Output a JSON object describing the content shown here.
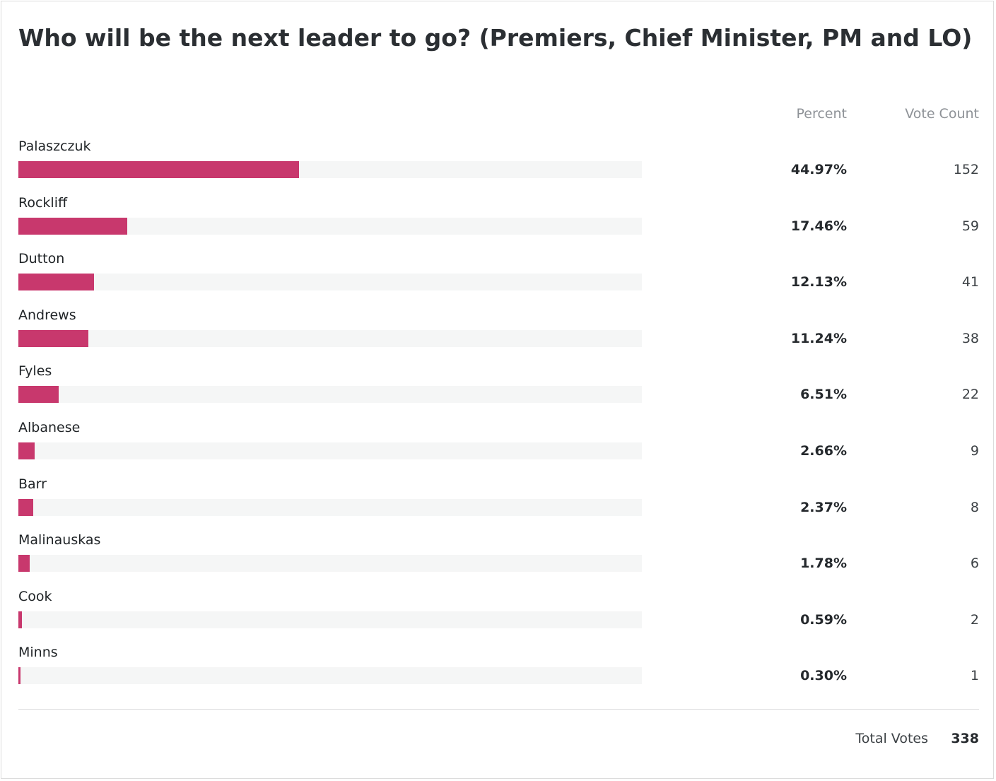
{
  "poll": {
    "title": "Who will be the next leader to go? (Premiers, Chief Minister, PM and LO)",
    "percent_header": "Percent",
    "count_header": "Vote Count",
    "total_label": "Total Votes",
    "total_value": "338"
  },
  "colors": {
    "bar": "#c8386d",
    "track": "#f5f6f6"
  },
  "chart_data": {
    "type": "bar",
    "orientation": "horizontal",
    "title": "Who will be the next leader to go? (Premiers, Chief Minister, PM and LO)",
    "xlim": [
      0,
      100
    ],
    "categories": [
      "Palaszczuk",
      "Rockliff",
      "Dutton",
      "Andrews",
      "Fyles",
      "Albanese",
      "Barr",
      "Malinauskas",
      "Cook",
      "Minns"
    ],
    "values": [
      44.97,
      17.46,
      12.13,
      11.24,
      6.51,
      2.66,
      2.37,
      1.78,
      0.59,
      0.3
    ],
    "percent_labels": [
      "44.97%",
      "17.46%",
      "12.13%",
      "11.24%",
      "6.51%",
      "2.66%",
      "2.37%",
      "1.78%",
      "0.59%",
      "0.30%"
    ],
    "vote_counts": [
      152,
      59,
      41,
      38,
      22,
      9,
      8,
      6,
      2,
      1
    ],
    "total_votes": 338
  }
}
